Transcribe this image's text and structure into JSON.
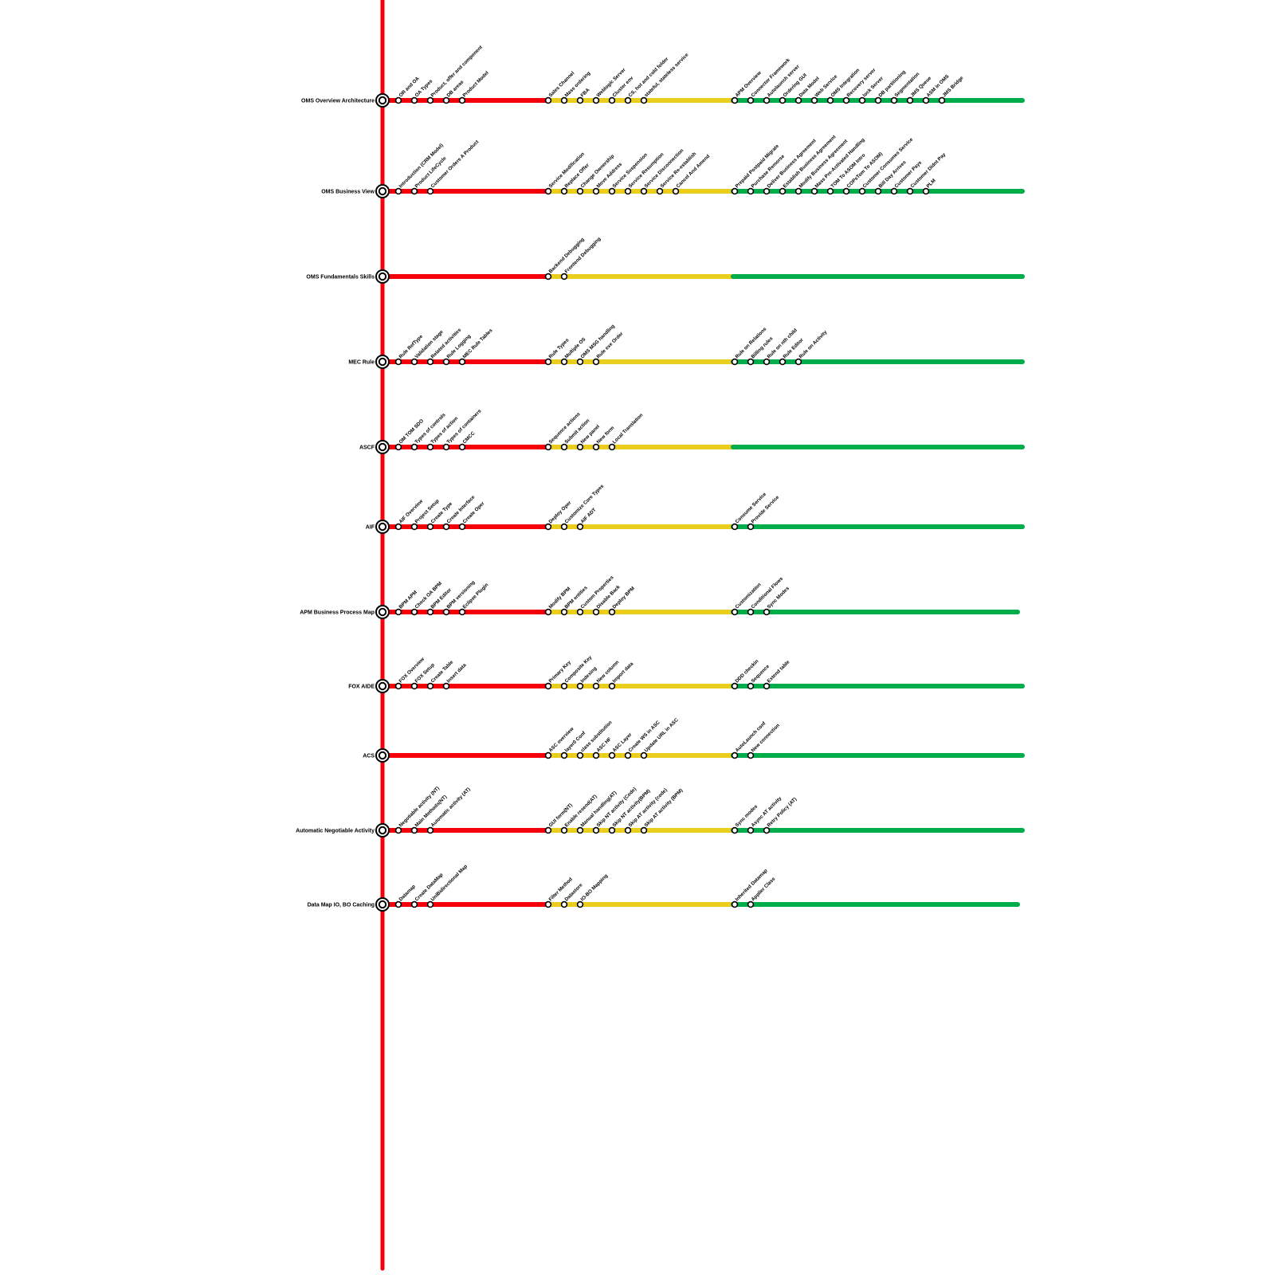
{
  "colors": {
    "stage1": "#f5000a",
    "stage2": "#ebcd1e",
    "stage3": "#00ad4b",
    "spine": "#f5000a"
  },
  "rows": [
    {
      "label": "OMS Overview  Architecture",
      "stages": [
        [
          "OR and OA",
          "OA Types",
          "Product, offer and component",
          "DB areas",
          "Product Model"
        ],
        [
          "Sales Channel",
          "Mass ordering",
          "FBA",
          "Weblogic Server",
          "Cluster env",
          "CS, hot and cold folder",
          "stateful, stateless service"
        ],
        [
          "APM Overview",
          "Connector Framework",
          "Autolaunch server",
          "Ordering GUI",
          "Data Model",
          "Web Service",
          "OMS Integration",
          "Recovery server",
          "lock Server",
          "DB partitioning",
          "Segmentation",
          "JMS Queue",
          "ASM in OMS",
          "JMS Bridge"
        ]
      ]
    },
    {
      "label": "OMS Business View",
      "stages": [
        [
          "Introduction (CRM Model)",
          "Product LifeCycle",
          "Customer Orders A Product"
        ],
        [
          "Service Modification",
          "Replace Offer",
          "Change Ownership",
          "Move Address",
          "Service Suspension",
          "Service Resumption",
          "Service Disconnection",
          "Service Re-establish",
          "Cancel And Amend"
        ],
        [
          "Prepaid Postpaid Migrate",
          "Purchase Remorse",
          "Deliver Business Agreement",
          "Establish Business Agreement",
          "Modify Business Agreement",
          "Mass Pre-Activated  Handling",
          "TOM To ASOM Intro",
          "COPsTom To ASOM)",
          "Customer Consumes Service",
          "Bill Day Arrives",
          "Customer Pays",
          "Customer Didnt Pay",
          "PLM"
        ]
      ]
    },
    {
      "label": "OMS Fundamentals Skills",
      "stages": [
        [],
        [
          "Backend Debugging",
          "Frontend Debugging"
        ],
        []
      ]
    },
    {
      "label": "MEC Rule",
      "stages": [
        [
          "Rule RefType",
          "Validation stage",
          "Related activities",
          "Rule Logging",
          "MEC Rule Tables"
        ],
        [
          "Rule Types",
          "Multiple OS",
          "OMS MSG handling",
          "Rule exe Order"
        ],
        [
          "Rule on Relations",
          "Billing rules",
          "Rule on nth child",
          "Rule Editor",
          "Rule on Activity"
        ]
      ]
    },
    {
      "label": "ASCF",
      "stages": [
        [
          "OM TOM SDO",
          "Types of controls",
          "Types of action",
          "Types of containers",
          "CMCC"
        ],
        [
          "Sequence actions",
          "Submit action",
          "New panel",
          "New form",
          "Local Translation"
        ],
        []
      ]
    },
    {
      "label": "AIF",
      "stages": [
        [
          "AIF Overview",
          "Project Setup",
          "Create Type",
          "Create Interface",
          "Create Oper"
        ],
        [
          "Deploy Oper",
          "Customize Core Types",
          "AIF ADT"
        ],
        [
          "Consume Service",
          "Provide Service"
        ]
      ]
    },
    {
      "label": "APM  Business Process Map",
      "stages": [
        [
          "BPM  APM",
          "Check OA BPM",
          "BPM Editor",
          "BPM versioning",
          "Eclipse Plugin"
        ],
        [
          "Modify BPM",
          "BPM entities",
          "Custom Properties",
          "Disable Back",
          "Deploy BPM"
        ],
        [
          "Customization",
          "Conditional Flows",
          "Sync Modes"
        ]
      ]
    },
    {
      "label": "FOX AIDE",
      "stages": [
        [
          "FOX Overview",
          "FOX Setup",
          "Create Table",
          "Insert data"
        ],
        [
          "Primary Key",
          "Composite Key",
          "Indexing",
          "New column",
          "Import data"
        ],
        [
          "DDD checkin",
          "Sequence",
          "Extend table"
        ]
      ]
    },
    {
      "label": "ACS",
      "stages": [
        [],
        [
          "ASC overview",
          "layer0 Conf",
          "class substitution",
          "ASC HF",
          "ASC Layer",
          "Create WS in ASC",
          "Update URL in ASC"
        ],
        [
          "AutoLaunch conf",
          "New connection"
        ]
      ]
    },
    {
      "label": "Automatic  Negotiable Activity",
      "stages": [
        [
          "Negotiable activity (NT)",
          "Main Methods(NT)",
          "Automatic activity (AT)"
        ],
        [
          "GUI form(NT)",
          "Enable resend(AT)",
          "Manual handling(AT)",
          "Skip NT activity (Code)",
          "Skip NT activity(BPM)",
          "Skip AT activity (code)",
          "Skip AT activity (BPM)"
        ],
        [
          "Sync modes",
          "Async AT activity",
          "Retry Policy (AT)"
        ]
      ]
    },
    {
      "label": "Data Map  IO, BO Caching",
      "stages": [
        [
          "Datamap",
          "Create DataMap",
          "UniBidirectional Map"
        ],
        [
          "Filter Method",
          "Datastore",
          "IO-BO Mapping"
        ],
        [
          "Inherited Datamap",
          "Applier Class"
        ]
      ]
    }
  ]
}
